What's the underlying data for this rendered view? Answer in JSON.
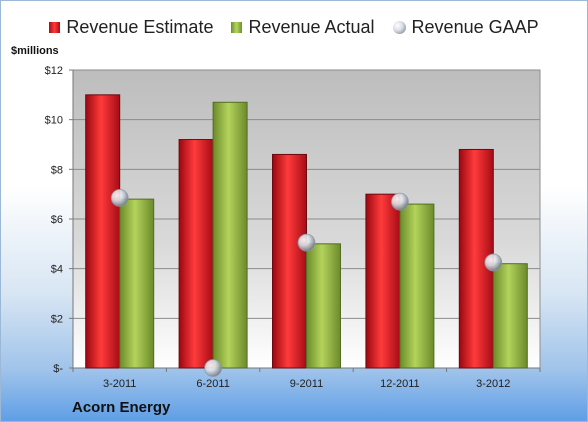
{
  "chart_data": {
    "type": "bar",
    "units_label": "$millions",
    "company": "Acorn Energy",
    "categories": [
      "3-2011",
      "6-2011",
      "9-2011",
      "12-2011",
      "3-2012"
    ],
    "y_ticks": [
      "$-",
      "$2",
      "$4",
      "$6",
      "$8",
      "$10",
      "$12"
    ],
    "ylim": [
      0,
      12
    ],
    "grid": true,
    "legend_position": "top",
    "series": [
      {
        "name": "Revenue Estimate",
        "type": "bar",
        "color": "#c9141e",
        "values": [
          11.0,
          9.2,
          8.6,
          7.0,
          8.8
        ]
      },
      {
        "name": "Revenue Actual",
        "type": "bar",
        "color": "#8fb24b",
        "values": [
          6.8,
          10.7,
          5.0,
          6.6,
          4.2
        ]
      },
      {
        "name": "Revenue GAAP",
        "type": "marker",
        "color": "#bfc4cc",
        "values": [
          6.85,
          0.0,
          5.05,
          6.7,
          4.25
        ]
      }
    ]
  }
}
